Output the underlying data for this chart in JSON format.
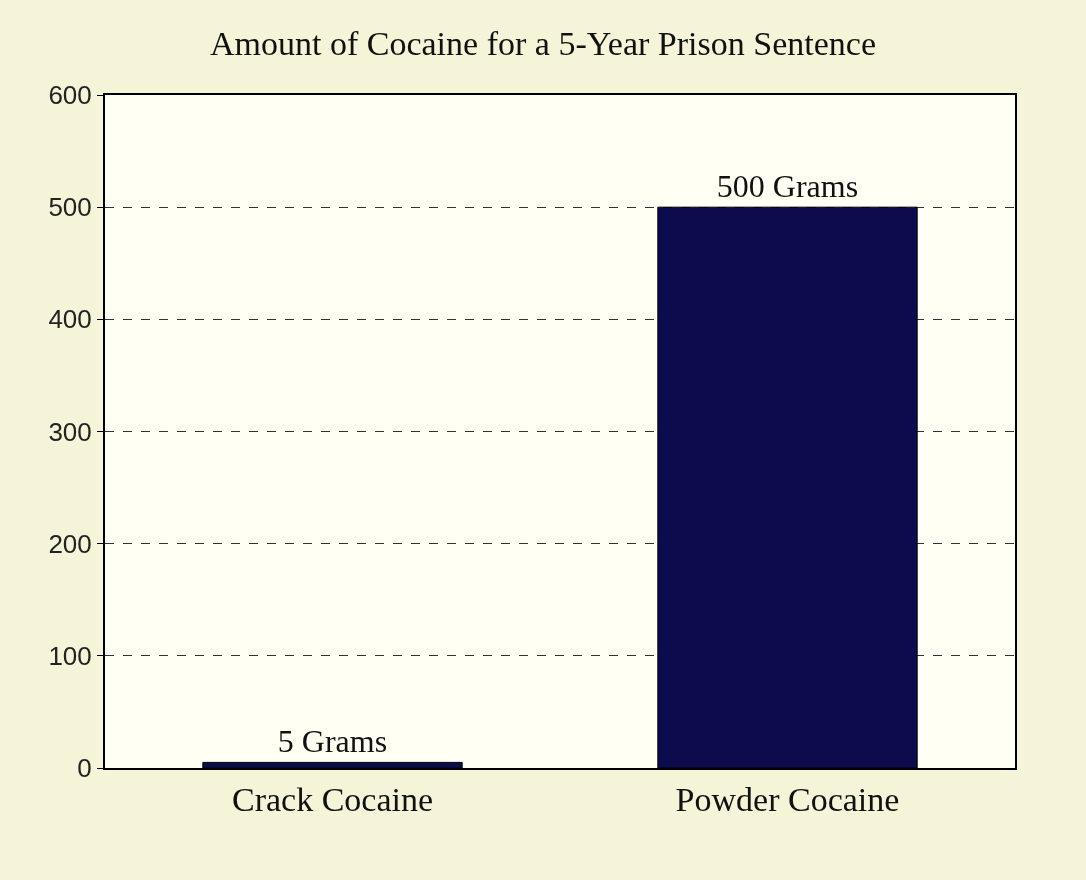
{
  "chart_data": {
    "type": "bar",
    "title": "Amount of Cocaine for a 5-Year Prison Sentence",
    "categories": [
      "Crack Cocaine",
      "Powder Cocaine"
    ],
    "values": [
      5,
      500
    ],
    "value_labels": [
      "5 Grams",
      "500 Grams"
    ],
    "color": "#0b0b4d",
    "ylim": [
      0,
      600
    ],
    "yticks": [
      0,
      100,
      200,
      300,
      400,
      500,
      600
    ],
    "grid": "y"
  }
}
